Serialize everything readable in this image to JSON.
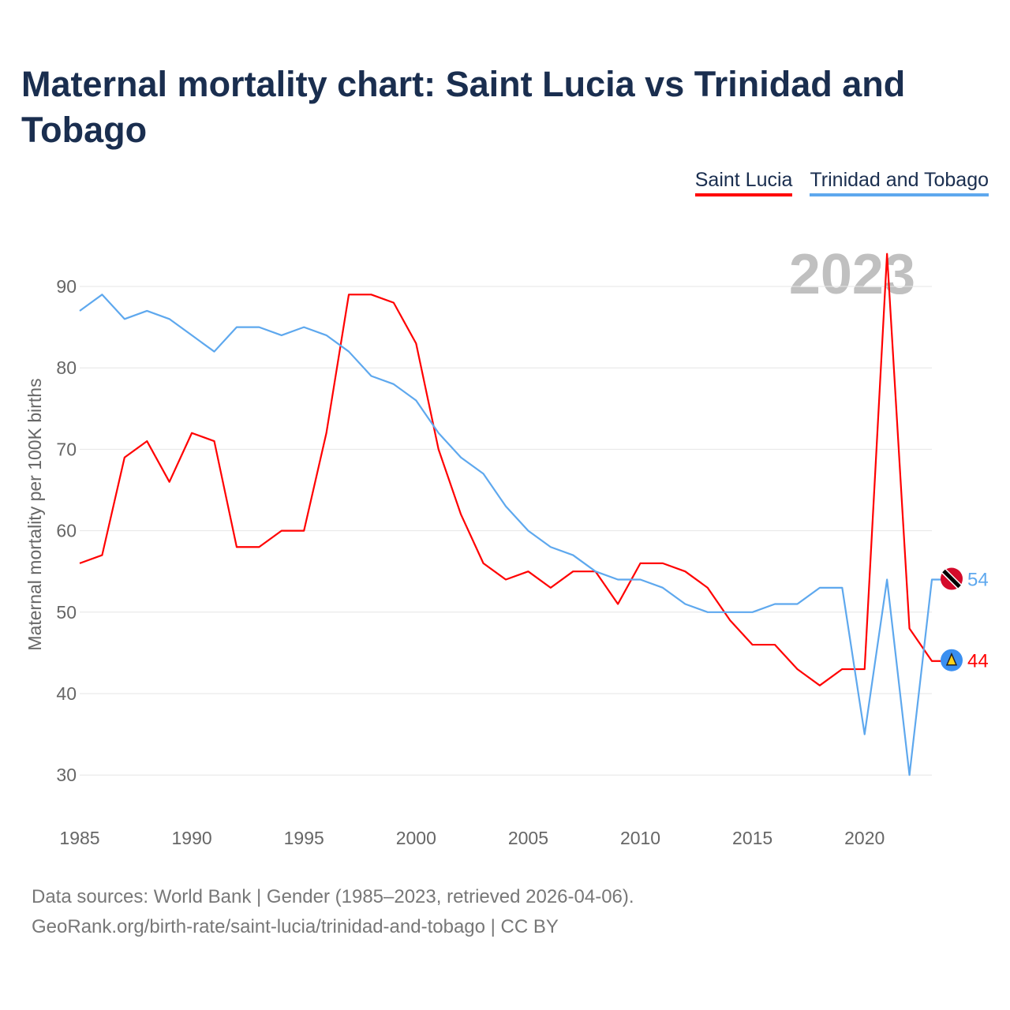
{
  "title": "Maternal mortality chart: Saint Lucia vs Trinidad and Tobago",
  "year_label": "2023",
  "footer": {
    "line1": "Data sources: World Bank | Gender (1985–2023, retrieved 2026-04-06).",
    "line2": "GeoRank.org/birth-rate/saint-lucia/trinidad-and-tobago | CC BY"
  },
  "chart_data": {
    "type": "line",
    "title": "Maternal mortality chart: Saint Lucia vs Trinidad and Tobago",
    "xlabel": "",
    "ylabel": "Maternal mortality per 100K births",
    "xlim": [
      1985,
      2023
    ],
    "ylim": [
      25,
      97
    ],
    "xticks": [
      "1985",
      "1990",
      "1995",
      "2000",
      "2005",
      "2010",
      "2015",
      "2020"
    ],
    "yticks": [
      "30",
      "40",
      "50",
      "60",
      "70",
      "80",
      "90"
    ],
    "grid": true,
    "legend_position": "top-right",
    "x": [
      1985,
      1986,
      1987,
      1988,
      1989,
      1990,
      1991,
      1992,
      1993,
      1994,
      1995,
      1996,
      1997,
      1998,
      1999,
      2000,
      2001,
      2002,
      2003,
      2004,
      2005,
      2006,
      2007,
      2008,
      2009,
      2010,
      2011,
      2012,
      2013,
      2014,
      2015,
      2016,
      2017,
      2018,
      2019,
      2020,
      2021,
      2022,
      2023
    ],
    "series": [
      {
        "name": "Saint Lucia",
        "color": "#ff0000",
        "end_label": "44",
        "values": [
          56,
          57,
          69,
          71,
          66,
          72,
          71,
          58,
          58,
          60,
          60,
          72,
          89,
          89,
          88,
          83,
          70,
          62,
          56,
          54,
          55,
          53,
          55,
          55,
          51,
          56,
          56,
          55,
          53,
          49,
          46,
          46,
          43,
          41,
          43,
          43,
          94,
          48,
          44
        ]
      },
      {
        "name": "Trinidad and Tobago",
        "color": "#5ea8ee",
        "end_label": "54",
        "values": [
          87,
          89,
          86,
          87,
          86,
          84,
          82,
          85,
          85,
          84,
          85,
          84,
          82,
          79,
          78,
          76,
          72,
          69,
          67,
          63,
          60,
          58,
          57,
          55,
          54,
          54,
          53,
          51,
          50,
          50,
          50,
          51,
          51,
          53,
          53,
          35,
          54,
          30,
          54
        ]
      }
    ]
  }
}
